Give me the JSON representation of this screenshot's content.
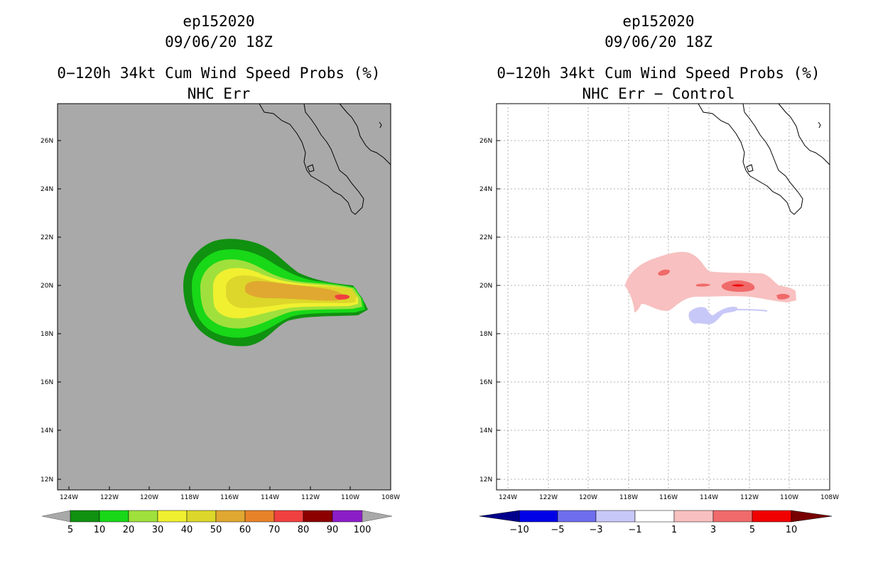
{
  "left": {
    "storm_id": "ep152020",
    "datetime": "09/06/20 18Z",
    "title": "0−120h 34kt Cum Wind Speed Probs (%)",
    "subtitle": "NHC Err",
    "background": "#a9a9a9",
    "colorbar": {
      "labels": [
        "5",
        "10",
        "20",
        "30",
        "40",
        "50",
        "60",
        "70",
        "80",
        "90",
        "100"
      ],
      "colors": [
        "#109110",
        "#18d818",
        "#a0e03c",
        "#f0f030",
        "#dcd72a",
        "#e0a830",
        "#e88228",
        "#f04040",
        "#8c0000",
        "#8c1ec8"
      ],
      "under_color": "#a9a9a9",
      "over_color": "#a9a9a9"
    }
  },
  "right": {
    "storm_id": "ep152020",
    "datetime": "09/06/20 18Z",
    "title": "0−120h 34kt Cum Wind Speed Probs (%)",
    "subtitle": "NHC Err − Control",
    "background": "#ffffff",
    "colorbar": {
      "labels": [
        "−10",
        "−5",
        "−3",
        "−1",
        "1",
        "3",
        "5",
        "10"
      ],
      "colors": [
        "#0000e6",
        "#6e6eee",
        "#c8c8f8",
        "#ffffff",
        "#f8c0c0",
        "#f06a6a",
        "#f00000"
      ],
      "under_color": "#00008c",
      "over_color": "#780000"
    }
  },
  "axes": {
    "lat_labels": [
      "26N",
      "24N",
      "22N",
      "20N",
      "18N",
      "16N",
      "14N",
      "12N"
    ],
    "lon_labels": [
      "124W",
      "122W",
      "120W",
      "118W",
      "116W",
      "114W",
      "112W",
      "110W",
      "108W"
    ],
    "lat_values": [
      26,
      24,
      22,
      20,
      18,
      16,
      14,
      12
    ],
    "lon_values": [
      -124,
      -122,
      -120,
      -118,
      -116,
      -114,
      -112,
      -110,
      -108
    ],
    "lat_range": [
      11.6,
      27.5
    ],
    "lon_range": [
      -124.6,
      -108
    ]
  },
  "prob_contours": [
    {
      "level": 5,
      "color": "#109110"
    },
    {
      "level": 10,
      "color": "#18d818"
    },
    {
      "level": 20,
      "color": "#a0e03c"
    },
    {
      "level": 30,
      "color": "#f0f030"
    },
    {
      "level": 40,
      "color": "#dcd72a"
    },
    {
      "level": 50,
      "color": "#e0a830"
    },
    {
      "level": 70,
      "color": "#f04040"
    }
  ]
}
